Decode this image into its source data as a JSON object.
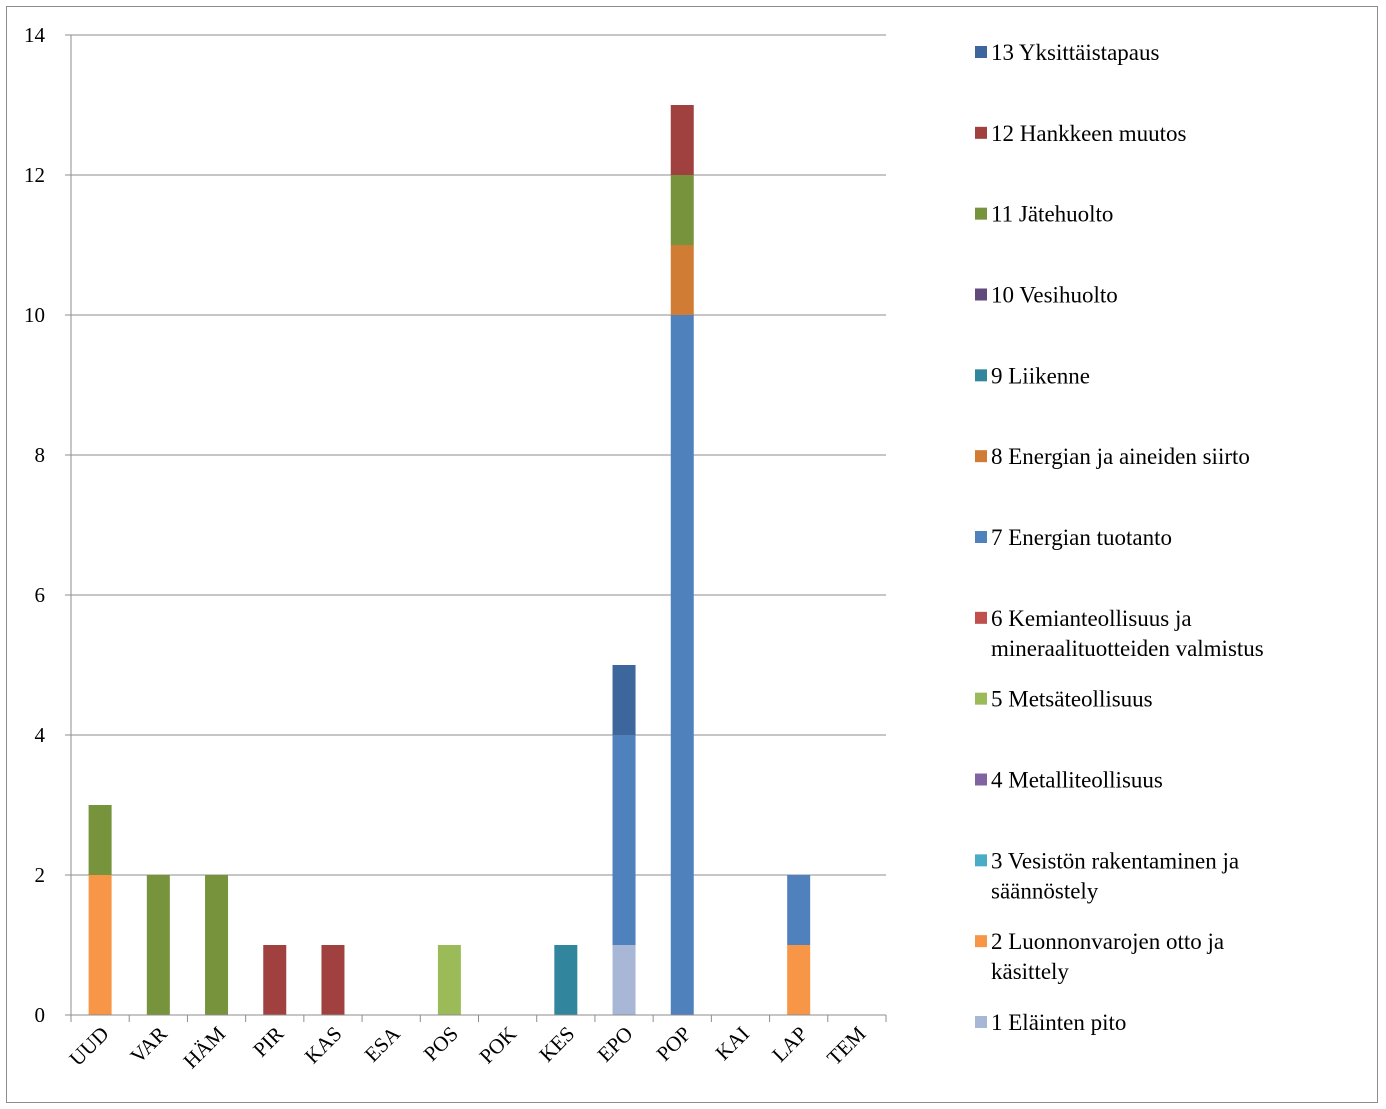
{
  "chart_data": {
    "type": "bar",
    "stacked": true,
    "title": "",
    "xlabel": "",
    "ylabel": "",
    "ylim": [
      0,
      14
    ],
    "yticks": [
      0,
      2,
      4,
      6,
      8,
      10,
      12,
      14
    ],
    "grid": true,
    "legend_position": "right",
    "categories": [
      "UUD",
      "VAR",
      "HÄM",
      "PIR",
      "KAS",
      "ESA",
      "POS",
      "POK",
      "KES",
      "EPO",
      "POP",
      "KAI",
      "LAP",
      "TEM"
    ],
    "series": [
      {
        "name": "1 Eläinten pito",
        "color": "#a9b7d6",
        "values": [
          0,
          0,
          0,
          0,
          0,
          0,
          0,
          0,
          0,
          1,
          0,
          0,
          0,
          0
        ]
      },
      {
        "name": "2 Luonnonvarojen otto ja käsittely",
        "color": "#f79646",
        "values": [
          2,
          0,
          0,
          0,
          0,
          0,
          0,
          0,
          0,
          0,
          0,
          0,
          1,
          0
        ]
      },
      {
        "name": "3 Vesistön rakentaminen ja säännöstely",
        "color": "#4bacc6",
        "values": [
          0,
          0,
          0,
          0,
          0,
          0,
          0,
          0,
          0,
          0,
          0,
          0,
          0,
          0
        ]
      },
      {
        "name": "4 Metalliteollisuus",
        "color": "#8064a2",
        "values": [
          0,
          0,
          0,
          0,
          0,
          0,
          0,
          0,
          0,
          0,
          0,
          0,
          0,
          0
        ]
      },
      {
        "name": "5 Metsäteollisuus",
        "color": "#9bbb59",
        "values": [
          0,
          0,
          0,
          0,
          0,
          0,
          1,
          0,
          0,
          0,
          0,
          0,
          0,
          0
        ]
      },
      {
        "name": "6 Kemianteollisuus ja mineraalituotteiden valmistus",
        "color": "#c0504d",
        "values": [
          0,
          0,
          0,
          0,
          0,
          0,
          0,
          0,
          0,
          0,
          0,
          0,
          0,
          0
        ]
      },
      {
        "name": "7 Energian tuotanto",
        "color": "#4f81bd",
        "values": [
          0,
          0,
          0,
          0,
          0,
          0,
          0,
          0,
          0,
          3,
          10,
          0,
          1,
          0
        ]
      },
      {
        "name": "8 Energian ja aineiden siirto",
        "color": "#d07c35",
        "values": [
          0,
          0,
          0,
          0,
          0,
          0,
          0,
          0,
          0,
          0,
          1,
          0,
          0,
          0
        ]
      },
      {
        "name": "9 Liikenne",
        "color": "#31859c",
        "values": [
          0,
          0,
          0,
          0,
          0,
          0,
          0,
          0,
          1,
          0,
          0,
          0,
          0,
          0
        ]
      },
      {
        "name": "10 Vesihuolto",
        "color": "#604a7b",
        "values": [
          0,
          0,
          0,
          0,
          0,
          0,
          0,
          0,
          0,
          0,
          0,
          0,
          0,
          0
        ]
      },
      {
        "name": "11 Jätehuolto",
        "color": "#77933c",
        "values": [
          1,
          2,
          2,
          0,
          0,
          0,
          0,
          0,
          0,
          0,
          1,
          0,
          0,
          0
        ]
      },
      {
        "name": "12 Hankkeen muutos",
        "color": "#a0403f",
        "values": [
          0,
          0,
          0,
          1,
          1,
          0,
          0,
          0,
          0,
          0,
          1,
          0,
          0,
          0
        ]
      },
      {
        "name": "13 Yksittäistapaus",
        "color": "#3c669c",
        "values": [
          0,
          0,
          0,
          0,
          0,
          0,
          0,
          0,
          0,
          1,
          0,
          0,
          0,
          0
        ]
      }
    ]
  }
}
